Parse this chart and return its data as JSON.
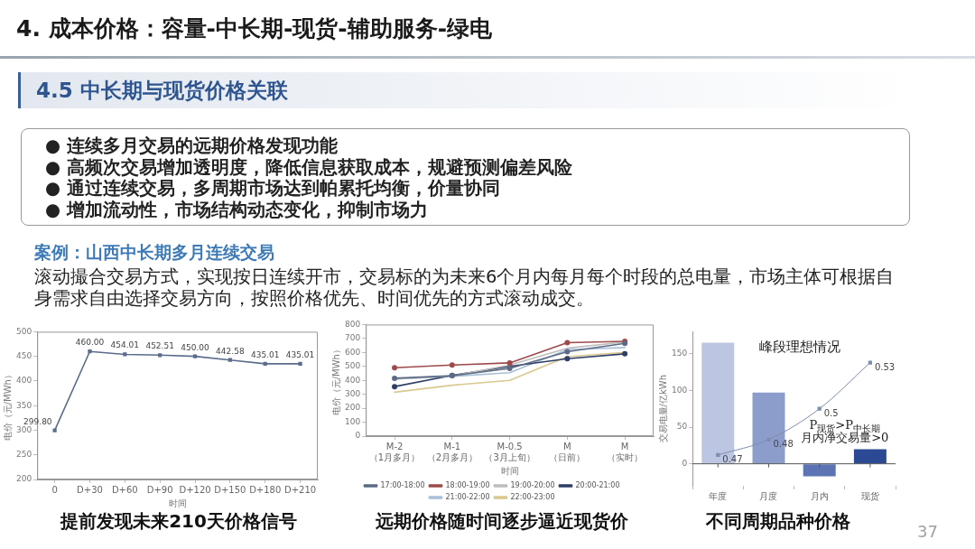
{
  "chart_data": [
    {
      "type": "other",
      "title": "4. 成本价格：容量-中长期-现货-辅助服务-绿电",
      "subtitle": "4.5 中长期与现货价格关联",
      "annotations": [
        "● 连续多月交易的远期价格发现功能",
        "● 高频次交易增加透明度，降低信息获取成本，规避预测偏差风险",
        "● 通过连续交易，多周期市场达到帕累托均衡，价量协同",
        "● 增加流动性，市场结构动态变化，抑制市场力",
        "案例：山西中长期多月连续交易",
        "滚动撮合交易方式，实现按日连续开市，交易标的为未来6个月内每月每个时段的总电量，市场主体可根据自身需求自由选择交易方向，按照价格优先、时间优先的方式滚动成交。",
        "37"
      ]
    },
    {
      "type": "line",
      "title": "提前发现未来210天价格信号",
      "xlabel": "时间",
      "ylabel": "电价（元/MWh）",
      "categories": [
        "0",
        "D+30",
        "D+60",
        "D+90",
        "D+120",
        "D+150",
        "D+180",
        "D+210"
      ],
      "values": [
        299.8,
        460,
        454.01,
        452.51,
        450,
        442.58,
        435.01,
        435.01
      ],
      "value_labels": [
        "299.80",
        "460.00",
        "454.01",
        "452.51",
        "450.00",
        "442.58",
        "435.01",
        "435.01"
      ],
      "color": "#5b6b8c",
      "marker": "square",
      "ylim": [
        200,
        500
      ],
      "yticks": [
        200,
        250,
        300,
        350,
        400,
        450,
        500
      ]
    },
    {
      "type": "line",
      "title": "远期价格随时间逐步逼近现货价",
      "xlabel": "时间",
      "ylabel": "电价（元/MWh）",
      "categories": [
        "M-2（1月多月）",
        "M-1（2月多月）",
        "M-0.5（3月上旬）",
        "M（日前）",
        "M（实时）"
      ],
      "series": [
        {
          "name": "17:00-18:00",
          "color": "#5b6b85",
          "marker": "circle",
          "values": [
            415,
            433,
            485,
            605,
            665
          ]
        },
        {
          "name": "18:00-19:00",
          "color": "#9e4a4a",
          "marker": "circle",
          "values": [
            490,
            510,
            525,
            670,
            680
          ]
        },
        {
          "name": "19:00-20:00",
          "color": "#bdbdbd",
          "marker": "none",
          "values": [
            410,
            430,
            510,
            630,
            675
          ]
        },
        {
          "name": "20:00-21:00",
          "color": "#2e3e66",
          "marker": "circle",
          "values": [
            355,
            435,
            500,
            555,
            590
          ]
        },
        {
          "name": "21:00-22:00",
          "color": "#a8c0d8",
          "marker": "none",
          "values": [
            410,
            428,
            455,
            620,
            635
          ]
        },
        {
          "name": "22:00-23:00",
          "color": "#d9c88f",
          "marker": "none",
          "values": [
            315,
            365,
            400,
            570,
            600
          ]
        }
      ],
      "ylim": [
        0,
        800
      ],
      "yticks": [
        0,
        100,
        200,
        300,
        400,
        500,
        600,
        700,
        800
      ],
      "legend": "bottom"
    },
    {
      "type": "bar",
      "title": "不同周期品种价格",
      "subtitle": "峰段理想情况",
      "ylabel": "交易电量/亿kWh",
      "categories": [
        "年度",
        "月度",
        "月内",
        "现货"
      ],
      "series": [
        {
          "type": "bar",
          "colors": [
            "#bcc6e2",
            "#8d9dcb",
            "#5d74b4",
            "#2b4a93"
          ],
          "values": [
            165,
            97,
            -17,
            20
          ]
        },
        {
          "type": "line",
          "axis": "y2",
          "color": "#7d8db0",
          "marker": "square",
          "values": [
            0.47,
            0.48,
            0.5,
            0.53
          ],
          "value_labels": [
            "0.47",
            "0.48",
            "0.5",
            "0.53"
          ]
        }
      ],
      "ylim": [
        -30,
        180
      ],
      "yticks": [
        0,
        50,
        100,
        150
      ],
      "y2lim": [
        0.45,
        0.55
      ],
      "annotations": [
        "P$_{现货}$>P$_{中长期}$",
        "月内净交易量>0"
      ]
    }
  ]
}
